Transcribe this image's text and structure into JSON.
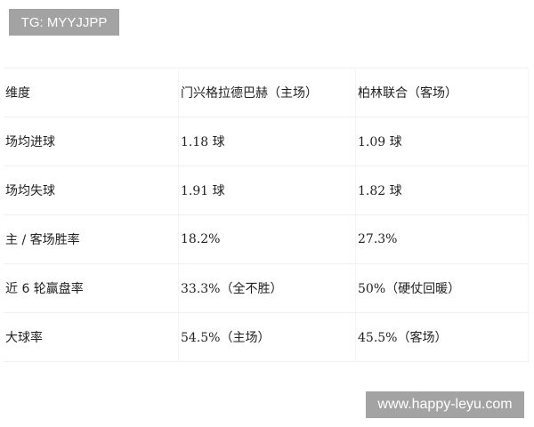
{
  "badge": "TG: MYYJJPP",
  "watermark": "www.happy-leyu.com",
  "table": {
    "header": [
      "维度",
      "门兴格拉德巴赫（主场）",
      "柏林联合（客场）"
    ],
    "rows": [
      [
        "场均进球",
        "1.18 球",
        "1.09 球"
      ],
      [
        "场均失球",
        "1.91 球",
        "1.82 球"
      ],
      [
        "主 / 客场胜率",
        "18.2%",
        "27.3%"
      ],
      [
        "近 6 轮赢盘率",
        "33.3%（全不胜）",
        "50%（硬仗回暖）"
      ],
      [
        "大球率",
        "54.5%（主场）",
        "45.5%（客场）"
      ]
    ]
  }
}
